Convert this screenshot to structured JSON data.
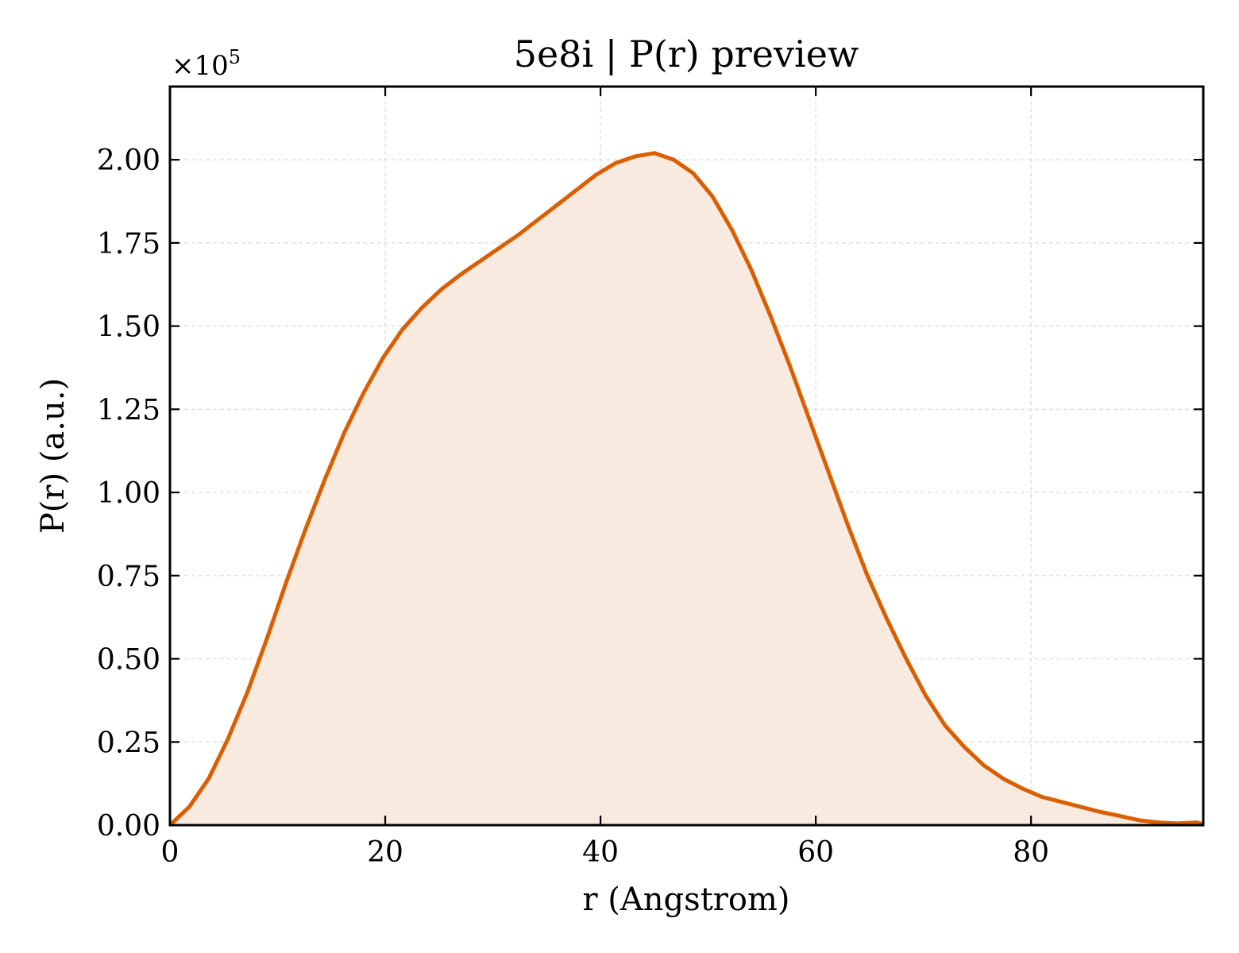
{
  "chart_data": {
    "type": "area",
    "title": "5e8i | P(r) preview",
    "xlabel": "r (Angstrom)",
    "ylabel": "P(r) (a.u.)",
    "y_offset_text": "×10",
    "y_offset_exponent": "5",
    "xlim": [
      0,
      96
    ],
    "ylim": [
      0,
      2.22
    ],
    "x_ticks": [
      0,
      20,
      40,
      60,
      80
    ],
    "x_tick_labels": [
      "0",
      "20",
      "40",
      "60",
      "80"
    ],
    "y_ticks": [
      0,
      0.25,
      0.5,
      0.75,
      1.0,
      1.25,
      1.5,
      1.75,
      2.0
    ],
    "y_tick_labels": [
      "0.00",
      "0.25",
      "0.50",
      "0.75",
      "1.00",
      "1.25",
      "1.50",
      "1.75",
      "2.00"
    ],
    "grid": true,
    "line_color": "#d95f02",
    "fill_color": "#f9eadf",
    "series": [
      {
        "x": [
          0,
          1.8,
          3.6,
          5.4,
          7.2,
          9.0,
          10.8,
          12.6,
          14.4,
          16.2,
          18.0,
          19.8,
          21.6,
          23.4,
          25.2,
          27.0,
          28.8,
          30.6,
          32.4,
          34.2,
          36.0,
          37.8,
          39.6,
          41.4,
          43.2,
          45.0,
          46.8,
          48.6,
          50.4,
          52.2,
          54.0,
          55.8,
          57.6,
          59.4,
          61.2,
          63.0,
          64.8,
          66.6,
          68.4,
          70.2,
          72.0,
          73.8,
          75.6,
          77.4,
          79.2,
          81.0,
          82.8,
          84.6,
          86.4,
          88.2,
          90.0,
          91.8,
          93.6,
          95.4,
          96.0
        ],
        "y": [
          0.0,
          0.055,
          0.14,
          0.26,
          0.4,
          0.56,
          0.73,
          0.89,
          1.04,
          1.18,
          1.3,
          1.405,
          1.49,
          1.555,
          1.61,
          1.655,
          1.695,
          1.735,
          1.775,
          1.82,
          1.865,
          1.91,
          1.955,
          1.99,
          2.01,
          2.02,
          2.0,
          1.96,
          1.89,
          1.79,
          1.67,
          1.53,
          1.38,
          1.22,
          1.06,
          0.9,
          0.75,
          0.62,
          0.5,
          0.39,
          0.3,
          0.235,
          0.18,
          0.14,
          0.11,
          0.085,
          0.07,
          0.055,
          0.04,
          0.028,
          0.015,
          0.008,
          0.005,
          0.008,
          0.003
        ]
      }
    ]
  }
}
